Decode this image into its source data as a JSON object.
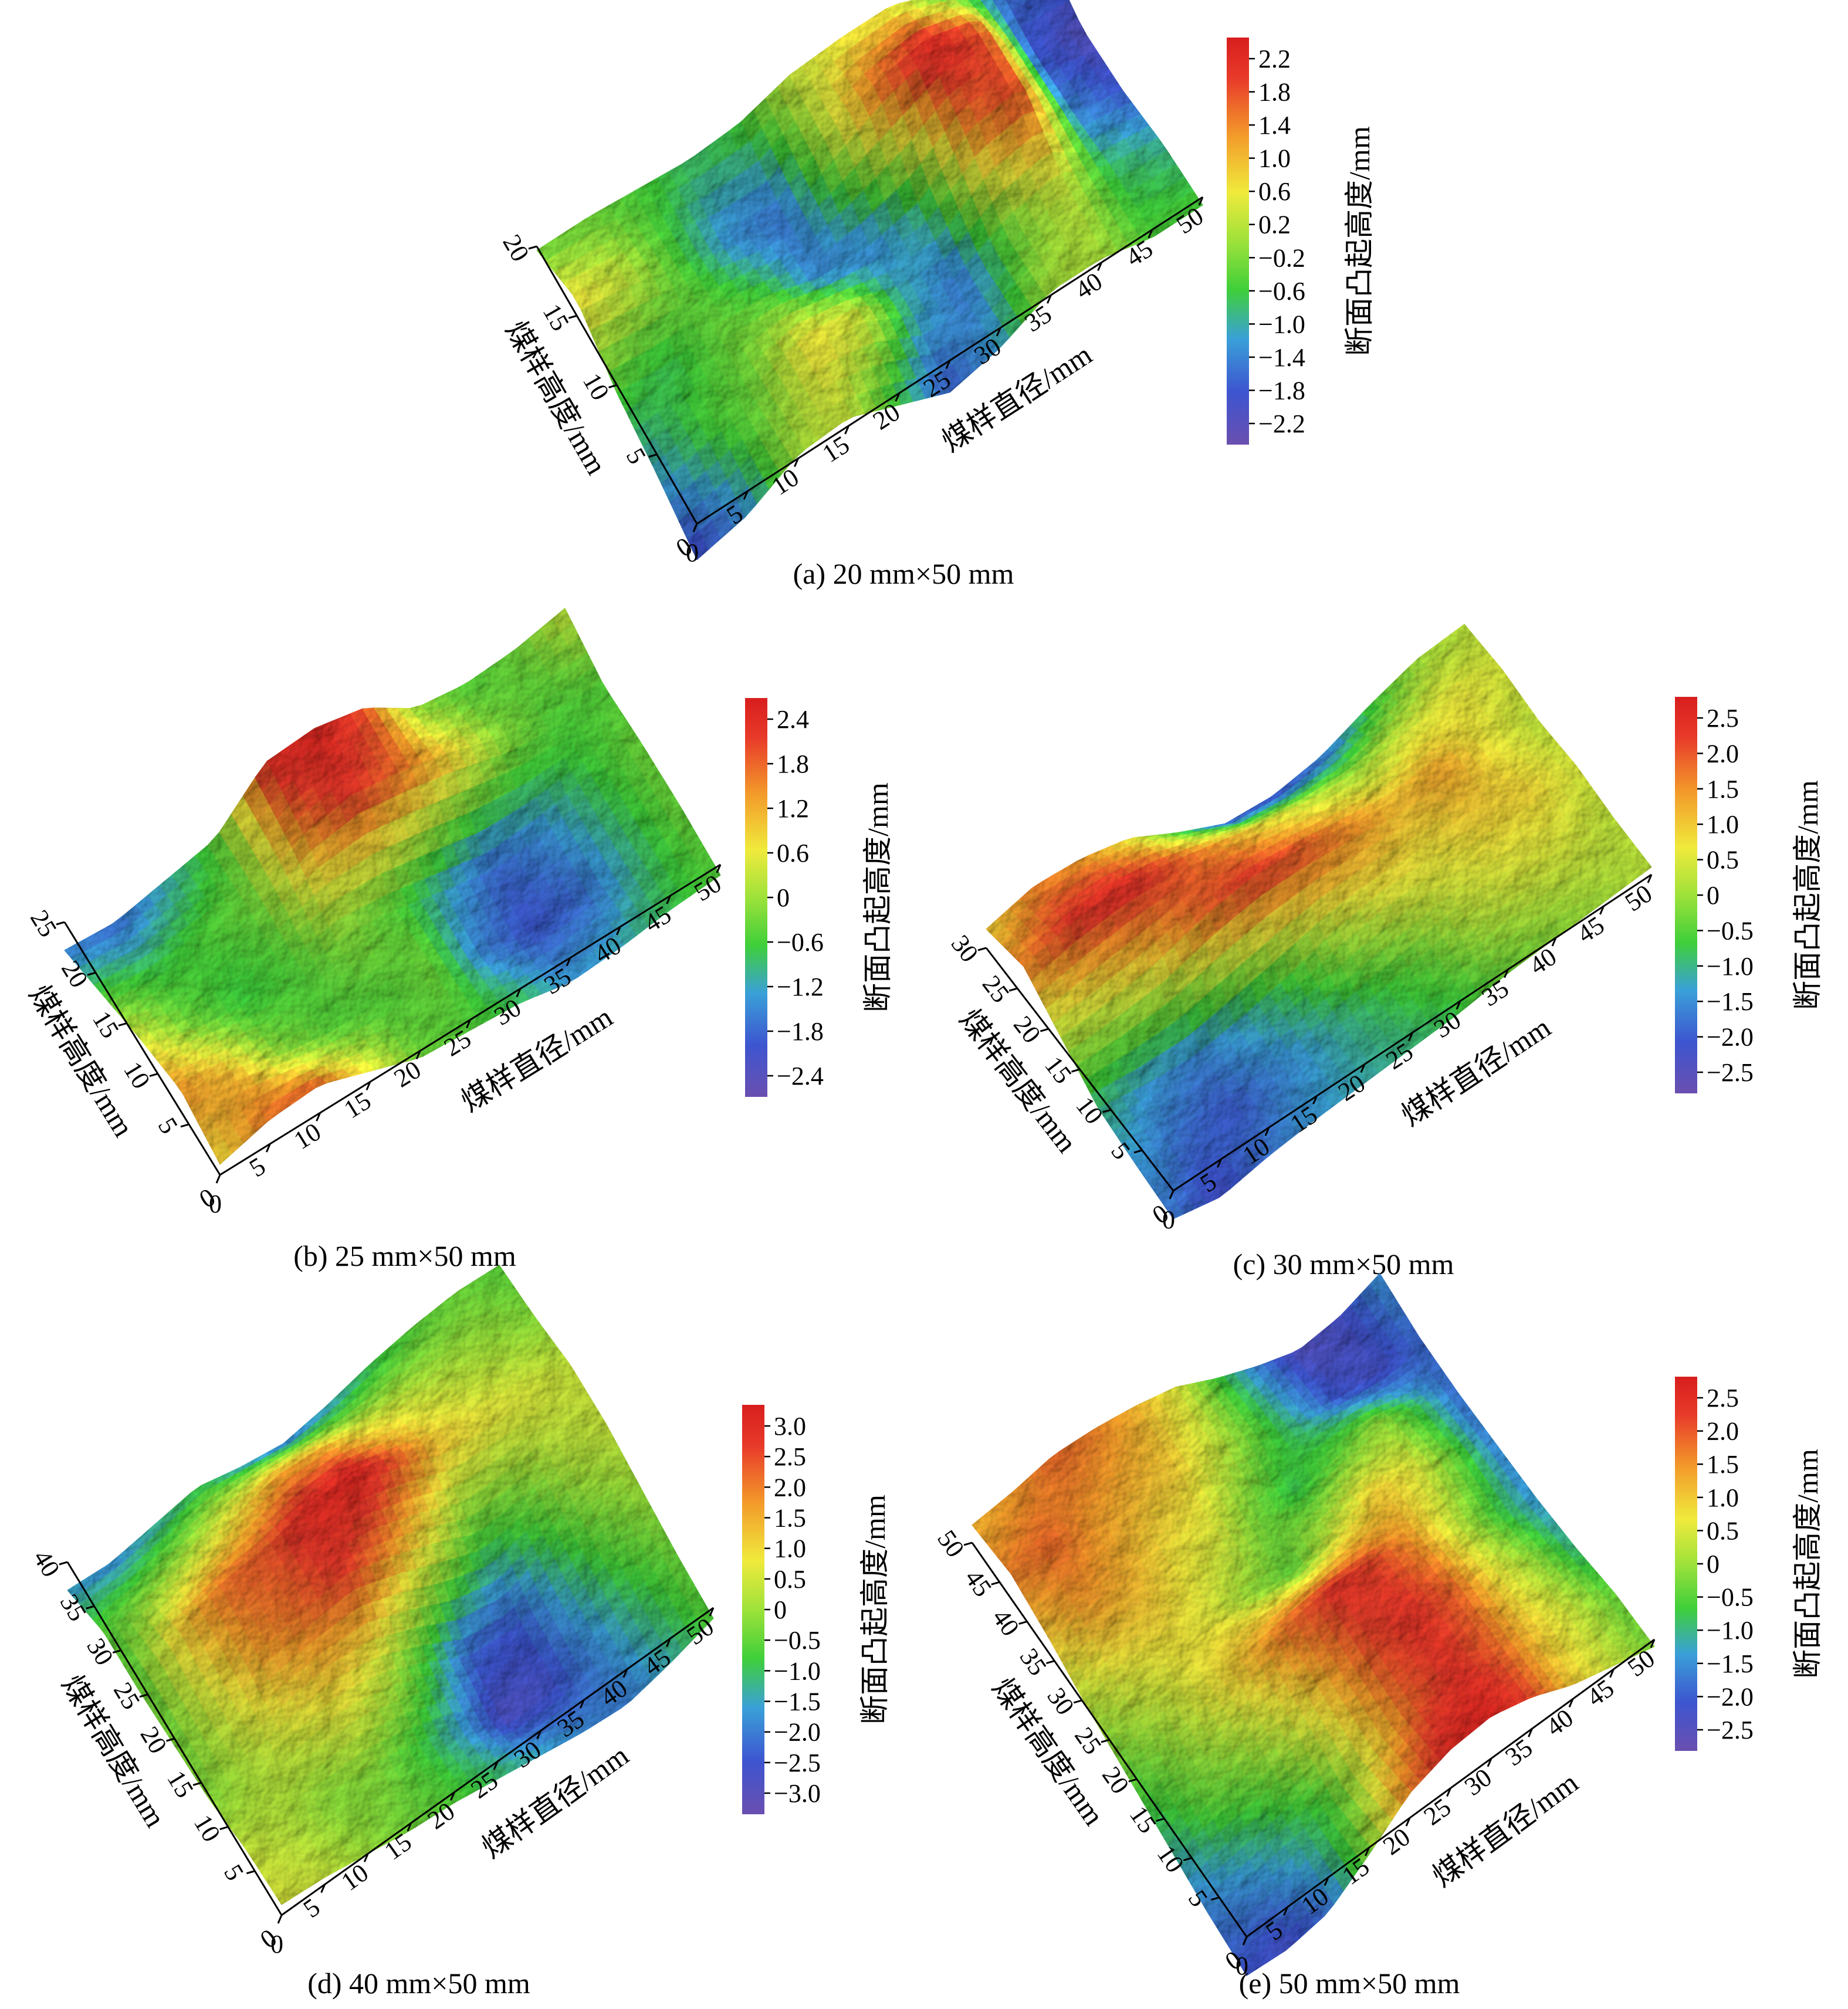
{
  "figure": {
    "colormap": [
      "#6a4fb0",
      "#3d55d0",
      "#3aa0d8",
      "#3fcf3a",
      "#9ee23a",
      "#f0ea3c",
      "#f39a2a",
      "#e83a2a",
      "#d81e1e"
    ],
    "panels": [
      {
        "id": "a",
        "caption": "(a) 20 mm×50 mm",
        "xlabel": "煤样直径/mm",
        "ylabel": "煤样高度/mm",
        "zlabel": "断面凸起高度/mm",
        "x_ticks": [
          "0",
          "5",
          "10",
          "15",
          "20",
          "25",
          "30",
          "35",
          "40",
          "45",
          "50"
        ],
        "y_ticks": [
          "5",
          "10",
          "15",
          "20"
        ],
        "colorbar_ticks": [
          "2.2",
          "1.8",
          "1.4",
          "1.0",
          "0.6",
          "0.2",
          "−0.2",
          "−0.6",
          "−1.0",
          "−1.4",
          "−1.8",
          "−2.2"
        ]
      },
      {
        "id": "b",
        "caption": "(b) 25 mm×50 mm",
        "xlabel": "煤样直径/mm",
        "ylabel": "煤样高度/mm",
        "zlabel": "断面凸起高度/mm",
        "x_ticks": [
          "0",
          "5",
          "10",
          "15",
          "20",
          "25",
          "30",
          "35",
          "40",
          "45",
          "50"
        ],
        "y_ticks": [
          "5",
          "10",
          "15",
          "20",
          "25"
        ],
        "colorbar_ticks": [
          "2.4",
          "1.8",
          "1.2",
          "0.6",
          "0",
          "−0.6",
          "−1.2",
          "−1.8",
          "−2.4"
        ]
      },
      {
        "id": "c",
        "caption": "(c) 30 mm×50 mm",
        "xlabel": "煤样直径/mm",
        "ylabel": "煤样高度/mm",
        "zlabel": "断面凸起高度/mm",
        "x_ticks": [
          "0",
          "5",
          "10",
          "15",
          "20",
          "25",
          "30",
          "35",
          "40",
          "45",
          "50"
        ],
        "y_ticks": [
          "5",
          "10",
          "15",
          "20",
          "25",
          "30"
        ],
        "colorbar_ticks": [
          "2.5",
          "2.0",
          "1.5",
          "1.0",
          "0.5",
          "0",
          "−0.5",
          "−1.0",
          "−1.5",
          "−2.0",
          "−2.5"
        ]
      },
      {
        "id": "d",
        "caption": "(d) 40 mm×50 mm",
        "xlabel": "煤样直径/mm",
        "ylabel": "煤样高度/mm",
        "zlabel": "断面凸起高度/mm",
        "x_ticks": [
          "0",
          "5",
          "10",
          "15",
          "20",
          "25",
          "30",
          "35",
          "40",
          "45",
          "50"
        ],
        "y_ticks": [
          "5",
          "10",
          "15",
          "20",
          "25",
          "30",
          "35",
          "40"
        ],
        "colorbar_ticks": [
          "3.0",
          "2.5",
          "2.0",
          "1.5",
          "1.0",
          "0.5",
          "0",
          "−0.5",
          "−1.0",
          "−1.5",
          "−2.0",
          "−2.5",
          "−3.0"
        ]
      },
      {
        "id": "e",
        "caption": "(e) 50 mm×50 mm",
        "xlabel": "煤样直径/mm",
        "ylabel": "煤样高度/mm",
        "zlabel": "断面凸起高度/mm",
        "x_ticks": [
          "0",
          "5",
          "10",
          "15",
          "20",
          "25",
          "30",
          "35",
          "40",
          "45",
          "50"
        ],
        "y_ticks": [
          "5",
          "10",
          "15",
          "20",
          "25",
          "30",
          "35",
          "40",
          "45",
          "50"
        ],
        "colorbar_ticks": [
          "2.5",
          "2.0",
          "1.5",
          "1.0",
          "0.5",
          "0",
          "−0.5",
          "−1.0",
          "−1.5",
          "−2.0",
          "−2.5"
        ]
      }
    ]
  },
  "chart_data": [
    {
      "type": "heatmap",
      "subtype": "3d-surface",
      "title": "(a) 20 mm×50 mm",
      "xlabel": "煤样直径/mm",
      "ylabel": "煤样高度/mm",
      "zlabel": "断面凸起高度/mm",
      "xlim": [
        0,
        50
      ],
      "ylim": [
        0,
        20
      ],
      "zlim": [
        -2.2,
        2.4
      ],
      "z_grid": [
        [
          -1.8,
          -1.2,
          0.2,
          0.4,
          -0.6,
          -1.6,
          -1.0,
          0.2,
          0.2,
          -0.4,
          -0.4
        ],
        [
          -1.0,
          -0.4,
          -0.2,
          0.8,
          0.6,
          -0.8,
          -1.4,
          -0.2,
          0.4,
          -0.6,
          -0.8
        ],
        [
          -0.4,
          -0.6,
          -0.2,
          -0.4,
          -1.2,
          -1.2,
          -0.6,
          1.4,
          1.8,
          -1.2,
          -1.6
        ],
        [
          0.8,
          0.4,
          -0.4,
          -1.2,
          -1.4,
          0.2,
          1.6,
          2.2,
          1.6,
          -1.6,
          -2.0
        ],
        [
          -0.2,
          -0.2,
          -0.4,
          -0.6,
          -0.4,
          0.4,
          0.6,
          0.6,
          -0.4,
          -1.4,
          -1.2
        ]
      ]
    },
    {
      "type": "heatmap",
      "subtype": "3d-surface",
      "title": "(b) 25 mm×50 mm",
      "xlabel": "煤样直径/mm",
      "ylabel": "煤样高度/mm",
      "zlabel": "断面凸起高度/mm",
      "xlim": [
        0,
        50
      ],
      "ylim": [
        0,
        25
      ],
      "zlim": [
        -2.6,
        2.4
      ],
      "z_grid": [
        [
          0.6,
          1.4,
          1.6,
          0.6,
          -0.4,
          -0.6,
          -0.8,
          -1.4,
          -1.2,
          -0.8,
          -0.6
        ],
        [
          1.2,
          0.8,
          -0.2,
          -0.6,
          -0.6,
          -0.4,
          -1.6,
          -2.0,
          -1.8,
          -1.0,
          -0.4
        ],
        [
          0.4,
          -0.4,
          -0.8,
          -0.6,
          -0.2,
          -0.6,
          -1.2,
          -1.8,
          -1.4,
          -0.8,
          -0.4
        ],
        [
          -0.6,
          -0.8,
          -0.6,
          -0.4,
          1.2,
          1.8,
          1.4,
          0.8,
          -0.2,
          -0.6,
          -0.6
        ],
        [
          -1.6,
          -1.8,
          -1.2,
          -0.6,
          2.0,
          2.2,
          1.6,
          -0.2,
          -0.6,
          -0.4,
          0.2
        ]
      ]
    },
    {
      "type": "heatmap",
      "subtype": "3d-surface",
      "title": "(c) 30 mm×50 mm",
      "xlabel": "煤样直径/mm",
      "ylabel": "煤样高度/mm",
      "zlabel": "断面凸起高度/mm",
      "xlim": [
        0,
        50
      ],
      "ylim": [
        0,
        30
      ],
      "zlim": [
        -2.5,
        2.8
      ],
      "z_grid": [
        [
          -1.5,
          -2.0,
          -1.5,
          -1.2,
          -1.0,
          -0.8,
          -0.6,
          -0.2,
          0.0,
          0.2,
          0.4
        ],
        [
          -1.2,
          -1.6,
          -1.8,
          -1.4,
          -1.0,
          -0.6,
          -0.2,
          0.4,
          0.6,
          0.6,
          0.4
        ],
        [
          -0.8,
          -1.2,
          -1.4,
          -1.0,
          -0.4,
          0.4,
          0.8,
          0.8,
          1.0,
          1.0,
          0.6
        ],
        [
          0.4,
          0.6,
          1.0,
          1.8,
          2.2,
          2.0,
          1.6,
          1.2,
          1.4,
          0.8,
          0.4
        ],
        [
          1.6,
          2.2,
          2.4,
          2.0,
          1.4,
          0.8,
          0.4,
          0.2,
          0.6,
          0.8,
          0.6
        ],
        [
          1.0,
          1.6,
          1.4,
          0.8,
          -0.6,
          -1.8,
          -2.0,
          -1.6,
          -0.6,
          0.2,
          0.4
        ]
      ]
    },
    {
      "type": "heatmap",
      "subtype": "3d-surface",
      "title": "(d) 40 mm×50 mm",
      "xlabel": "煤样直径/mm",
      "ylabel": "煤样高度/mm",
      "zlabel": "断面凸起高度/mm",
      "xlim": [
        0,
        50
      ],
      "ylim": [
        0,
        40
      ],
      "zlim": [
        -3.2,
        3.2
      ],
      "z_grid": [
        [
          0.6,
          0.4,
          0.0,
          -0.4,
          -0.6,
          -1.0,
          -1.4,
          -1.8,
          -2.0,
          -1.4,
          -0.6
        ],
        [
          0.4,
          0.2,
          -0.2,
          -0.2,
          -0.8,
          -1.6,
          -2.8,
          -2.6,
          -1.8,
          -1.0,
          -0.4
        ],
        [
          -0.2,
          0.2,
          0.6,
          1.0,
          0.4,
          -0.8,
          -2.2,
          -2.4,
          -1.2,
          -0.4,
          0.0
        ],
        [
          -0.4,
          0.6,
          1.6,
          2.0,
          2.4,
          1.6,
          0.6,
          -0.6,
          -0.4,
          0.2,
          0.4
        ],
        [
          -0.6,
          1.2,
          2.0,
          2.2,
          2.8,
          3.0,
          2.2,
          1.2,
          0.8,
          0.6,
          0.4
        ],
        [
          -0.6,
          -0.2,
          0.2,
          0.8,
          1.4,
          1.2,
          0.6,
          0.4,
          0.2,
          0.0,
          -0.2
        ],
        [
          -1.6,
          -1.8,
          -1.4,
          -1.0,
          -1.6,
          -2.0,
          -1.6,
          -1.0,
          -0.6,
          -0.4,
          -0.6
        ]
      ]
    },
    {
      "type": "heatmap",
      "subtype": "3d-surface",
      "title": "(e) 50 mm×50 mm",
      "xlabel": "煤样直径/mm",
      "ylabel": "煤样高度/mm",
      "zlabel": "断面凸起高度/mm",
      "xlim": [
        0,
        50
      ],
      "ylim": [
        0,
        50
      ],
      "zlim": [
        -2.9,
        2.6
      ],
      "z_grid": [
        [
          -2.2,
          -2.4,
          -2.0,
          -0.4,
          1.4,
          2.2,
          2.4,
          1.8,
          0.8,
          0.2,
          -0.4
        ],
        [
          -1.8,
          -1.6,
          -1.2,
          -0.8,
          0.6,
          1.6,
          2.0,
          1.6,
          0.8,
          0.2,
          -0.6
        ],
        [
          -1.2,
          -0.6,
          -0.4,
          0.2,
          1.0,
          1.8,
          2.0,
          1.6,
          0.6,
          -0.2,
          -1.2
        ],
        [
          -0.6,
          -0.2,
          0.4,
          1.0,
          1.6,
          2.0,
          1.8,
          1.2,
          0.2,
          -0.8,
          -1.6
        ],
        [
          0.0,
          0.4,
          0.6,
          0.4,
          -0.2,
          -0.6,
          0.2,
          0.8,
          0.4,
          -0.6,
          -1.8
        ],
        [
          0.8,
          1.2,
          1.0,
          0.6,
          0.4,
          -0.4,
          -1.0,
          -0.6,
          -0.2,
          -1.0,
          -2.0
        ],
        [
          1.4,
          1.6,
          1.2,
          1.0,
          0.8,
          0.2,
          -0.6,
          -1.4,
          -2.2,
          -2.4,
          -2.0
        ],
        [
          1.0,
          1.2,
          1.6,
          1.4,
          1.0,
          0.4,
          -0.8,
          -1.8,
          -2.6,
          -2.4,
          -1.6
        ]
      ]
    }
  ]
}
